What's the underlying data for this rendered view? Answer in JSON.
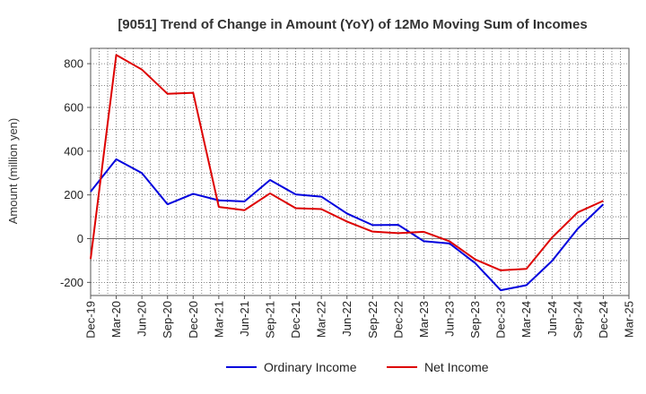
{
  "chart_data": {
    "type": "line",
    "title": "[9051]  Trend of Change in Amount (YoY) of 12Mo Moving Sum of Incomes",
    "ylabel": "Amount (million yen)",
    "xlabel": "",
    "ylim": [
      -260,
      870
    ],
    "yticks": [
      -200,
      0,
      200,
      400,
      600,
      800
    ],
    "ytick_labels": [
      "-200",
      "0",
      "200",
      "400",
      "600",
      "800"
    ],
    "categories": [
      "Dec-19",
      "Mar-20",
      "Jun-20",
      "Sep-20",
      "Dec-20",
      "Mar-21",
      "Jun-21",
      "Sep-21",
      "Dec-21",
      "Mar-22",
      "Jun-22",
      "Sep-22",
      "Dec-22",
      "Mar-23",
      "Jun-23",
      "Sep-23",
      "Dec-23",
      "Mar-24",
      "Jun-24",
      "Sep-24",
      "Dec-24",
      "Mar-25"
    ],
    "grid": true,
    "legend_position": "bottom",
    "series": [
      {
        "name": "Ordinary Income",
        "color": "#0000dd",
        "values": [
          215,
          363,
          300,
          157,
          205,
          175,
          170,
          268,
          202,
          192,
          115,
          62,
          63,
          -12,
          -22,
          -112,
          -236,
          -213,
          -102,
          45,
          157,
          null
        ]
      },
      {
        "name": "Net Income",
        "color": "#dd0000",
        "values": [
          -93,
          840,
          773,
          662,
          667,
          145,
          130,
          207,
          139,
          135,
          78,
          32,
          25,
          31,
          -12,
          -95,
          -145,
          -138,
          5,
          120,
          173,
          null
        ]
      }
    ]
  }
}
